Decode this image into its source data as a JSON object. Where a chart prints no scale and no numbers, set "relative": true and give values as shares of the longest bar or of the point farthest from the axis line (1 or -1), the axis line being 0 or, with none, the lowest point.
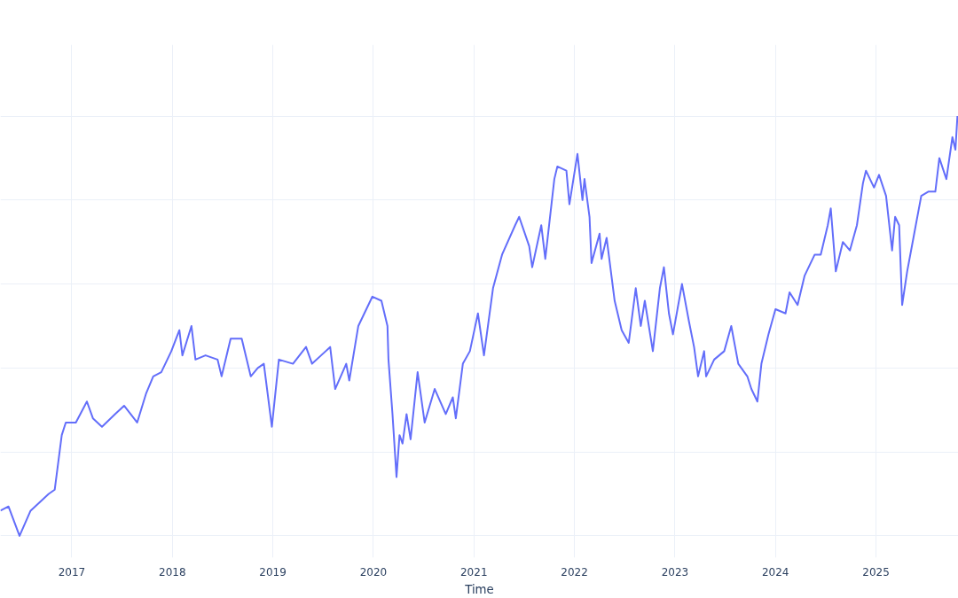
{
  "chart_data": {
    "type": "line",
    "xlabel": "Time",
    "relative": true,
    "grid": true,
    "xlim": [
      2016.29,
      2025.82
    ],
    "xticks": [
      2017,
      2018,
      2019,
      2020,
      2021,
      2022,
      2023,
      2024,
      2025
    ],
    "series": [
      {
        "color": "#636efa",
        "x": [
          2016.29,
          2016.37,
          2016.48,
          2016.59,
          2016.77,
          2016.83,
          2016.9,
          2016.94,
          2017.04,
          2017.15,
          2017.21,
          2017.3,
          2017.43,
          2017.52,
          2017.65,
          2017.74,
          2017.81,
          2017.89,
          2017.99,
          2018.07,
          2018.1,
          2018.19,
          2018.23,
          2018.33,
          2018.45,
          2018.49,
          2018.58,
          2018.69,
          2018.78,
          2018.85,
          2018.91,
          2018.99,
          2019.06,
          2019.2,
          2019.33,
          2019.39,
          2019.48,
          2019.57,
          2019.62,
          2019.73,
          2019.76,
          2019.85,
          2019.99,
          2020.08,
          2020.14,
          2020.15,
          2020.19,
          2020.23,
          2020.26,
          2020.29,
          2020.33,
          2020.37,
          2020.44,
          2020.51,
          2020.61,
          2020.72,
          2020.79,
          2020.82,
          2020.89,
          2020.96,
          2021.04,
          2021.1,
          2021.19,
          2021.28,
          2021.41,
          2021.45,
          2021.55,
          2021.58,
          2021.67,
          2021.71,
          2021.8,
          2021.83,
          2021.92,
          2021.95,
          2022.03,
          2022.08,
          2022.1,
          2022.15,
          2022.17,
          2022.25,
          2022.27,
          2022.32,
          2022.4,
          2022.47,
          2022.54,
          2022.61,
          2022.66,
          2022.7,
          2022.78,
          2022.85,
          2022.89,
          2022.94,
          2022.98,
          2023.07,
          2023.14,
          2023.19,
          2023.23,
          2023.29,
          2023.31,
          2023.39,
          2023.49,
          2023.56,
          2023.63,
          2023.72,
          2023.76,
          2023.82,
          2023.86,
          2023.93,
          2024.0,
          2024.1,
          2024.14,
          2024.22,
          2024.29,
          2024.39,
          2024.45,
          2024.52,
          2024.55,
          2024.6,
          2024.67,
          2024.74,
          2024.81,
          2024.87,
          2024.9,
          2024.98,
          2025.03,
          2025.1,
          2025.16,
          2025.19,
          2025.23,
          2025.26,
          2025.31,
          2025.38,
          2025.45,
          2025.52,
          2025.59,
          2025.63,
          2025.7,
          2025.76,
          2025.79,
          2025.81
        ],
        "values": [
          0.06,
          0.07,
          0.0,
          0.06,
          0.1,
          0.11,
          0.24,
          0.27,
          0.27,
          0.32,
          0.28,
          0.26,
          0.29,
          0.31,
          0.27,
          0.34,
          0.38,
          0.39,
          0.44,
          0.49,
          0.43,
          0.5,
          0.42,
          0.43,
          0.42,
          0.38,
          0.47,
          0.47,
          0.38,
          0.4,
          0.41,
          0.26,
          0.42,
          0.41,
          0.45,
          0.41,
          0.43,
          0.45,
          0.35,
          0.41,
          0.37,
          0.5,
          0.57,
          0.56,
          0.5,
          0.42,
          0.29,
          0.14,
          0.24,
          0.22,
          0.29,
          0.23,
          0.39,
          0.27,
          0.35,
          0.29,
          0.33,
          0.28,
          0.41,
          0.44,
          0.53,
          0.43,
          0.59,
          0.67,
          0.74,
          0.76,
          0.69,
          0.64,
          0.74,
          0.66,
          0.85,
          0.88,
          0.87,
          0.79,
          0.91,
          0.8,
          0.85,
          0.76,
          0.65,
          0.72,
          0.66,
          0.71,
          0.56,
          0.49,
          0.46,
          0.59,
          0.5,
          0.56,
          0.44,
          0.59,
          0.64,
          0.53,
          0.48,
          0.6,
          0.51,
          0.45,
          0.38,
          0.44,
          0.38,
          0.42,
          0.44,
          0.5,
          0.41,
          0.38,
          0.35,
          0.32,
          0.41,
          0.48,
          0.54,
          0.53,
          0.58,
          0.55,
          0.62,
          0.67,
          0.67,
          0.74,
          0.78,
          0.63,
          0.7,
          0.68,
          0.74,
          0.84,
          0.87,
          0.83,
          0.86,
          0.81,
          0.68,
          0.76,
          0.74,
          0.55,
          0.63,
          0.72,
          0.81,
          0.82,
          0.82,
          0.9,
          0.85,
          0.95,
          0.92,
          1.0
        ]
      }
    ]
  }
}
